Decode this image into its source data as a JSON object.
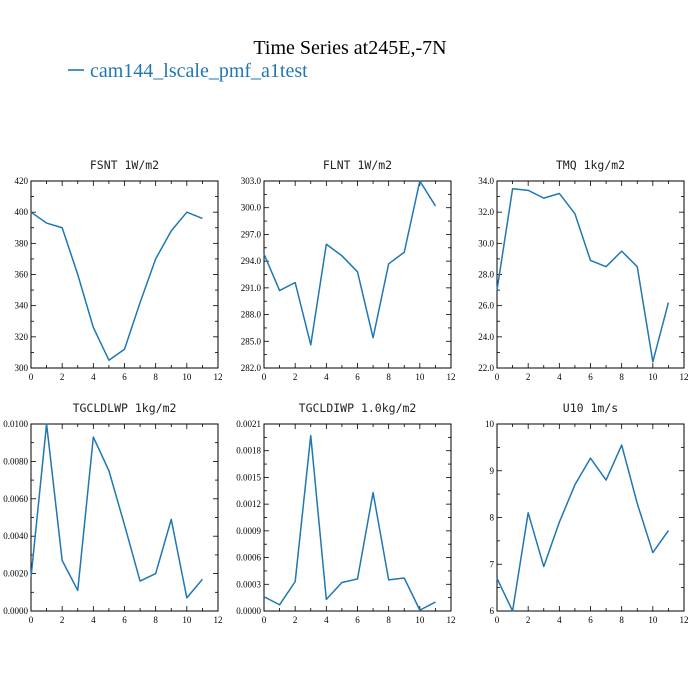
{
  "figure": {
    "title": "Time Series at245E,-7N",
    "legend_label": "cam144_lscale_pmf_a1test",
    "legend_color": "#1f77b4"
  },
  "chart_data": [
    {
      "type": "line",
      "title": "FSNT   1W/m2",
      "x": [
        0,
        1,
        2,
        3,
        4,
        5,
        6,
        7,
        8,
        9,
        10,
        11
      ],
      "series": [
        {
          "values": [
            400,
            393,
            390,
            360,
            326,
            305,
            312,
            342,
            370,
            388,
            400,
            396
          ]
        }
      ],
      "xlim": [
        0,
        12
      ],
      "ylim": [
        300,
        420
      ],
      "xticks": [
        0,
        2,
        4,
        6,
        8,
        10,
        12
      ],
      "yticks": [
        300,
        320,
        340,
        360,
        380,
        400,
        420
      ],
      "ytick_labels": [
        "300",
        "320",
        "340",
        "360",
        "380",
        "400",
        "420"
      ]
    },
    {
      "type": "line",
      "title": "FLNT   1W/m2",
      "x": [
        0,
        1,
        2,
        3,
        4,
        5,
        6,
        7,
        8,
        9,
        10,
        11
      ],
      "series": [
        {
          "values": [
            294.8,
            290.7,
            291.6,
            284.6,
            295.9,
            294.6,
            292.8,
            285.4,
            293.7,
            295.0,
            303.0,
            300.2
          ]
        }
      ],
      "xlim": [
        0,
        12
      ],
      "ylim": [
        282,
        303
      ],
      "xticks": [
        0,
        2,
        4,
        6,
        8,
        10,
        12
      ],
      "yticks": [
        282,
        285,
        288,
        291,
        294,
        297,
        300,
        303
      ],
      "ytick_labels": [
        "282.0",
        "285.0",
        "288.0",
        "291.0",
        "294.0",
        "297.0",
        "300.0",
        "303.0"
      ]
    },
    {
      "type": "line",
      "title": "TMQ   1kg/m2",
      "x": [
        0,
        1,
        2,
        3,
        4,
        5,
        6,
        7,
        8,
        9,
        10,
        11
      ],
      "series": [
        {
          "values": [
            27.0,
            33.5,
            33.4,
            32.9,
            33.2,
            31.9,
            28.9,
            28.5,
            29.5,
            28.5,
            22.4,
            26.2
          ]
        }
      ],
      "xlim": [
        0,
        12
      ],
      "ylim": [
        22,
        34
      ],
      "xticks": [
        0,
        2,
        4,
        6,
        8,
        10,
        12
      ],
      "yticks": [
        22,
        24,
        26,
        28,
        30,
        32,
        34
      ],
      "ytick_labels": [
        "22.0",
        "24.0",
        "26.0",
        "28.0",
        "30.0",
        "32.0",
        "34.0"
      ]
    },
    {
      "type": "line",
      "title": "TGCLDLWP   1kg/m2",
      "x": [
        0,
        1,
        2,
        3,
        4,
        5,
        6,
        7,
        8,
        9,
        10,
        11
      ],
      "series": [
        {
          "values": [
            0.0018,
            0.01,
            0.0027,
            0.0011,
            0.0093,
            0.0075,
            0.0046,
            0.0016,
            0.002,
            0.0049,
            0.0007,
            0.0017
          ]
        }
      ],
      "xlim": [
        0,
        12
      ],
      "ylim": [
        0,
        0.01
      ],
      "xticks": [
        0,
        2,
        4,
        6,
        8,
        10,
        12
      ],
      "yticks": [
        0,
        0.002,
        0.004,
        0.006,
        0.008,
        0.01
      ],
      "ytick_labels": [
        "0.0000",
        "0.0020",
        "0.0040",
        "0.0060",
        "0.0080",
        "0.0100"
      ]
    },
    {
      "type": "line",
      "title": "TGCLDIWP   1.0kg/m2",
      "x": [
        0,
        1,
        2,
        3,
        4,
        5,
        6,
        7,
        8,
        9,
        10,
        11
      ],
      "series": [
        {
          "values": [
            0.00016,
            7e-05,
            0.00033,
            0.00197,
            0.00013,
            0.00032,
            0.00036,
            0.00133,
            0.00035,
            0.00037,
            1e-05,
            0.0001
          ]
        }
      ],
      "xlim": [
        0,
        12
      ],
      "ylim": [
        0,
        0.0021
      ],
      "xticks": [
        0,
        2,
        4,
        6,
        8,
        10,
        12
      ],
      "yticks": [
        0,
        0.0003,
        0.0006,
        0.0009,
        0.0012,
        0.0015,
        0.0018,
        0.0021
      ],
      "ytick_labels": [
        "0.0000",
        "0.0003",
        "0.0006",
        "0.0009",
        "0.0012",
        "0.0015",
        "0.0018",
        "0.0021"
      ]
    },
    {
      "type": "line",
      "title": "U10   1m/s",
      "x": [
        0,
        1,
        2,
        3,
        4,
        5,
        6,
        7,
        8,
        9,
        10,
        11
      ],
      "series": [
        {
          "values": [
            6.7,
            6.0,
            8.1,
            6.95,
            7.9,
            8.7,
            9.27,
            8.8,
            9.55,
            8.3,
            7.25,
            7.72
          ]
        }
      ],
      "xlim": [
        0,
        12
      ],
      "ylim": [
        6,
        10
      ],
      "xticks": [
        0,
        2,
        4,
        6,
        8,
        10,
        12
      ],
      "yticks": [
        6,
        7,
        8,
        9,
        10
      ],
      "ytick_labels": [
        "6",
        "7",
        "8",
        "9",
        "10"
      ]
    }
  ]
}
